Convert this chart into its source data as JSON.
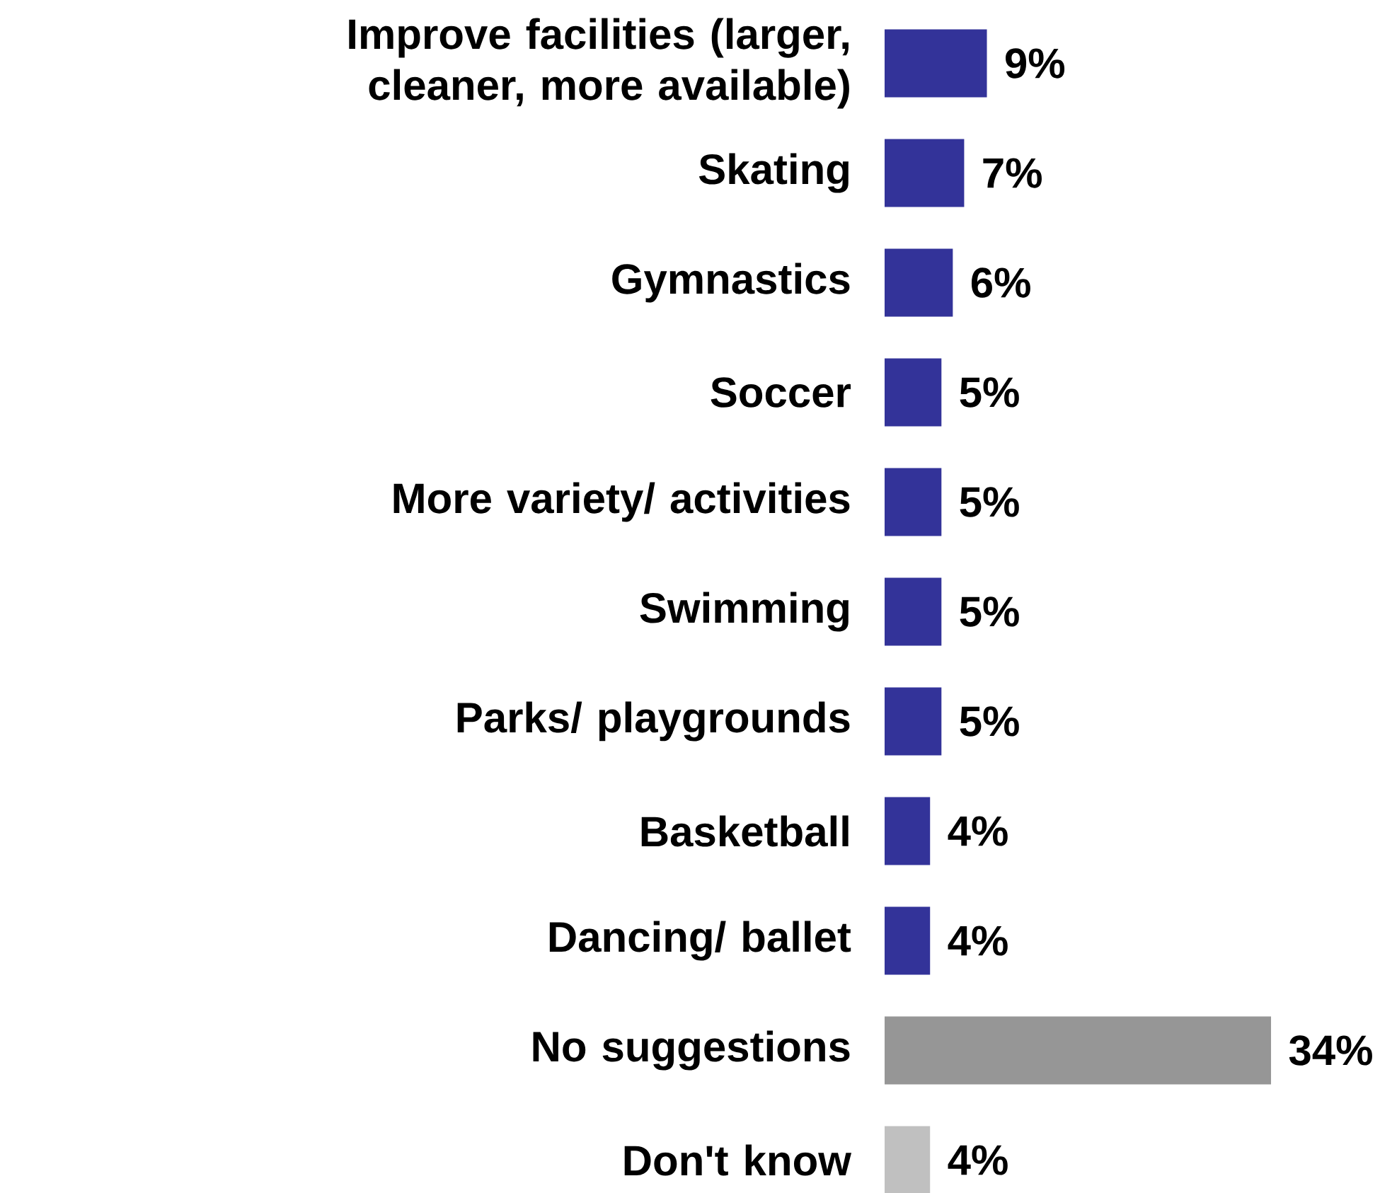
{
  "chart_data": {
    "type": "bar",
    "orientation": "horizontal",
    "categories": [
      "Improve facilities (larger, cleaner, more available)",
      "Skating",
      "Gymnastics",
      "Soccer",
      "More variety/ activities",
      "Swimming",
      "Parks/ playgrounds",
      "Basketball",
      "Dancing/ ballet",
      "No suggestions",
      "Don't know"
    ],
    "values": [
      9,
      7,
      6,
      5,
      5,
      5,
      5,
      4,
      4,
      34,
      4
    ],
    "value_labels": [
      "9%",
      "7%",
      "6%",
      "5%",
      "5%",
      "5%",
      "5%",
      "4%",
      "4%",
      "34%",
      "4%"
    ],
    "colors": [
      "#333399",
      "#333399",
      "#333399",
      "#333399",
      "#333399",
      "#333399",
      "#333399",
      "#333399",
      "#333399",
      "#969696",
      "#c0c0c0"
    ],
    "tick_labels": "y"
  }
}
